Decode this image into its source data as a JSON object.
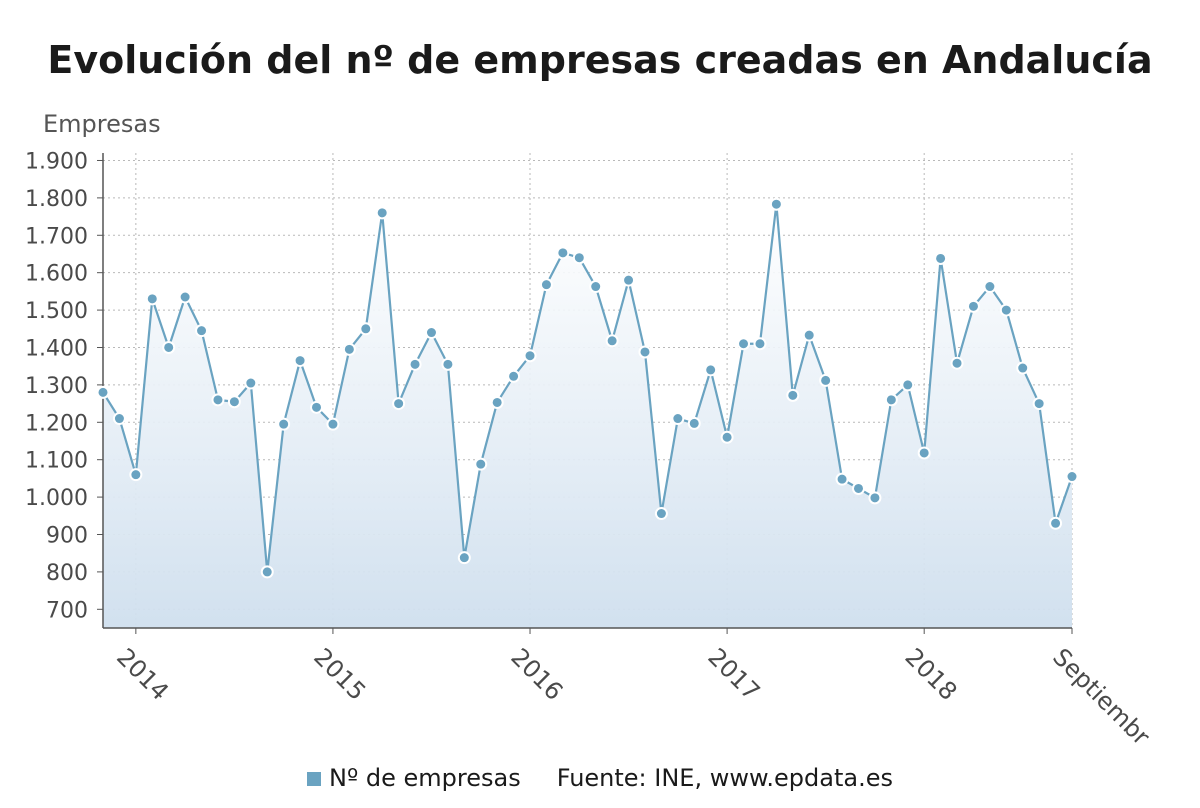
{
  "chart_data": {
    "type": "area",
    "title": "Evolución del nº de empresas creadas en Andalucía",
    "ylabel": "Empresas",
    "ylim": [
      650,
      1920
    ],
    "y_ticks": [
      700,
      800,
      900,
      1000,
      1100,
      1200,
      1300,
      1400,
      1500,
      1600,
      1700,
      1800,
      1900
    ],
    "y_tick_labels": [
      "700",
      "800",
      "900",
      "1.000",
      "1.100",
      "1.200",
      "1.300",
      "1.400",
      "1.500",
      "1.600",
      "1.700",
      "1.800",
      "1.900"
    ],
    "x_tick_labels": [
      {
        "index": 2,
        "label": "2014"
      },
      {
        "index": 14,
        "label": "2015"
      },
      {
        "index": 26,
        "label": "2016"
      },
      {
        "index": 38,
        "label": "2017"
      },
      {
        "index": 50,
        "label": "2018"
      },
      {
        "index": 59,
        "label": "Septiembr"
      }
    ],
    "grid": true,
    "legend_position": "bottom",
    "series": [
      {
        "name": "Nº de empresas",
        "color": "#6aa3c1",
        "values": [
          1280,
          1210,
          1060,
          1530,
          1400,
          1535,
          1445,
          1260,
          1255,
          1305,
          800,
          1195,
          1365,
          1240,
          1195,
          1395,
          1450,
          1760,
          1250,
          1355,
          1440,
          1355,
          838,
          1088,
          1253,
          1323,
          1378,
          1568,
          1653,
          1640,
          1563,
          1418,
          1580,
          1388,
          956,
          1210,
          1197,
          1340,
          1160,
          1410,
          1410,
          1783,
          1272,
          1433,
          1312,
          1048,
          1023,
          998,
          1260,
          1300,
          1118,
          1638,
          1358,
          1510,
          1563,
          1500,
          1345,
          1250,
          930,
          1055
        ]
      }
    ]
  },
  "legend": {
    "series_label": "Nº de empresas",
    "source": "Fuente: INE, www.epdata.es"
  }
}
